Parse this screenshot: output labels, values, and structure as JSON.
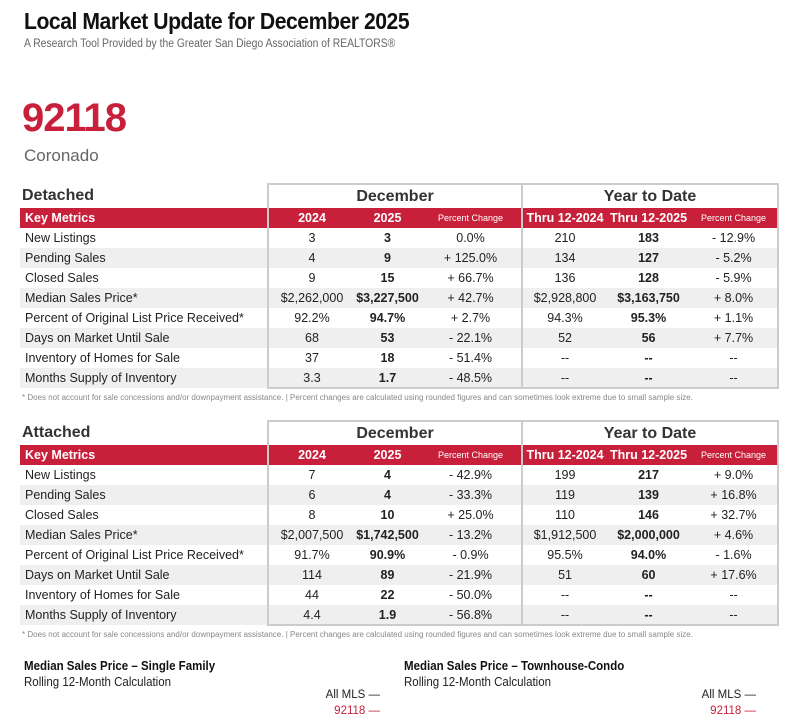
{
  "header": {
    "title": "Local Market Update for December 2025",
    "subtitle": "A Research Tool Provided by the Greater San Diego Association of REALTORS®"
  },
  "area": {
    "zip": "92118",
    "city": "Coronado"
  },
  "columns": {
    "key": "Key Metrics",
    "december": "December",
    "ytd": "Year to Date",
    "c2024": "2024",
    "c2025": "2025",
    "pct": "Percent Change",
    "thru2024": "Thru 12-2024",
    "thru2025": "Thru 12-2025"
  },
  "footnote": "* Does not account for sale concessions and/or downpayment assistance.  |  Percent changes are calculated using rounded figures and can sometimes look extreme due to small sample size.",
  "sections": [
    {
      "name": "Detached",
      "rows": [
        [
          "New Listings",
          "3",
          "3",
          "0.0%",
          "210",
          "183",
          "- 12.9%"
        ],
        [
          "Pending Sales",
          "4",
          "9",
          "+ 125.0%",
          "134",
          "127",
          "- 5.2%"
        ],
        [
          "Closed Sales",
          "9",
          "15",
          "+ 66.7%",
          "136",
          "128",
          "- 5.9%"
        ],
        [
          "Median Sales Price*",
          "$2,262,000",
          "$3,227,500",
          "+ 42.7%",
          "$2,928,800",
          "$3,163,750",
          "+ 8.0%"
        ],
        [
          "Percent of Original List Price Received*",
          "92.2%",
          "94.7%",
          "+ 2.7%",
          "94.3%",
          "95.3%",
          "+ 1.1%"
        ],
        [
          "Days on Market Until Sale",
          "68",
          "53",
          "- 22.1%",
          "52",
          "56",
          "+ 7.7%"
        ],
        [
          "Inventory of Homes for Sale",
          "37",
          "18",
          "- 51.4%",
          "--",
          "--",
          "--"
        ],
        [
          "Months Supply of Inventory",
          "3.3",
          "1.7",
          "- 48.5%",
          "--",
          "--",
          "--"
        ]
      ]
    },
    {
      "name": "Attached",
      "rows": [
        [
          "New Listings",
          "7",
          "4",
          "- 42.9%",
          "199",
          "217",
          "+ 9.0%"
        ],
        [
          "Pending Sales",
          "6",
          "4",
          "- 33.3%",
          "119",
          "139",
          "+ 16.8%"
        ],
        [
          "Closed Sales",
          "8",
          "10",
          "+ 25.0%",
          "110",
          "146",
          "+ 32.7%"
        ],
        [
          "Median Sales Price*",
          "$2,007,500",
          "$1,742,500",
          "- 13.2%",
          "$1,912,500",
          "$2,000,000",
          "+ 4.6%"
        ],
        [
          "Percent of Original List Price Received*",
          "91.7%",
          "90.9%",
          "- 0.9%",
          "95.5%",
          "94.0%",
          "- 1.6%"
        ],
        [
          "Days on Market Until Sale",
          "114",
          "89",
          "- 21.9%",
          "51",
          "60",
          "+ 17.6%"
        ],
        [
          "Inventory of Homes for Sale",
          "44",
          "22",
          "- 50.0%",
          "--",
          "--",
          "--"
        ],
        [
          "Months Supply of Inventory",
          "4.4",
          "1.9",
          "- 56.8%",
          "--",
          "--",
          "--"
        ]
      ]
    }
  ],
  "charts": [
    {
      "title": "Median Sales Price – Single Family",
      "subtitle": "Rolling 12-Month Calculation",
      "legend": [
        "All MLS  —",
        "92118  —"
      ]
    },
    {
      "title": "Median Sales Price – Townhouse-Condo",
      "subtitle": "Rolling 12-Month Calculation",
      "legend": [
        "All MLS  —",
        "92118  —"
      ]
    }
  ]
}
